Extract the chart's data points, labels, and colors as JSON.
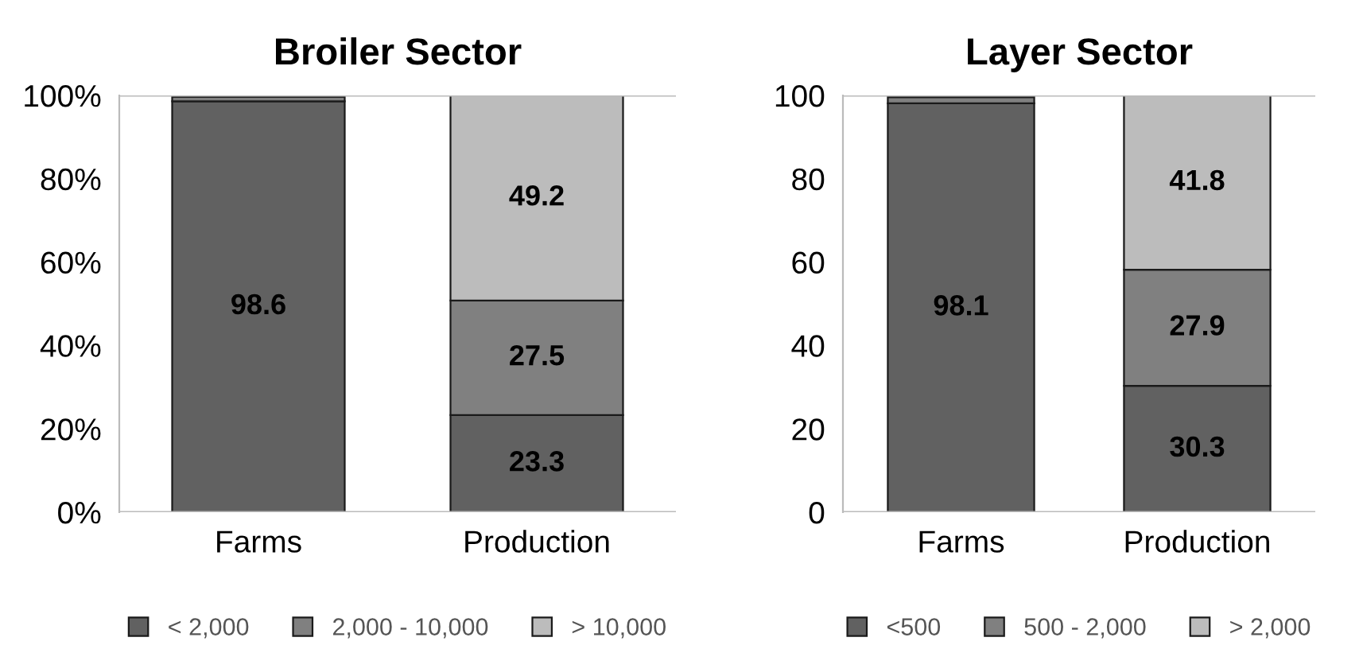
{
  "chart_data": [
    {
      "type": "bar",
      "stacked": true,
      "title": "Broiler Sector",
      "categories": [
        "Farms",
        "Production"
      ],
      "ylim": [
        0,
        100
      ],
      "yticks": [
        {
          "value": 0,
          "label": "0%"
        },
        {
          "value": 20,
          "label": "20%"
        },
        {
          "value": 40,
          "label": "40%"
        },
        {
          "value": 60,
          "label": "60%"
        },
        {
          "value": 80,
          "label": "80%"
        },
        {
          "value": 100,
          "label": "100%"
        }
      ],
      "grid": false,
      "legend": "bottom",
      "series": [
        {
          "name": "< 2,000",
          "color": "#616161",
          "values": [
            98.6,
            23.3
          ],
          "value_labels": [
            "98.6",
            "23.3"
          ]
        },
        {
          "name": "2,000 - 10,000",
          "color": "#808080",
          "values": [
            1.1,
            27.5
          ],
          "value_labels": [
            null,
            "27.5"
          ]
        },
        {
          "name": "> 10,000",
          "color": "#bcbcbc",
          "values": [
            null,
            49.2
          ],
          "value_labels": [
            null,
            "49.2"
          ]
        }
      ]
    },
    {
      "type": "bar",
      "stacked": true,
      "title": "Layer Sector",
      "categories": [
        "Farms",
        "Production"
      ],
      "ylim": [
        0,
        100
      ],
      "yticks": [
        0,
        20,
        40,
        60,
        80,
        100
      ],
      "grid": false,
      "legend": "bottom",
      "series": [
        {
          "name": "<500",
          "color": "#616161",
          "values": [
            98.1,
            30.3
          ],
          "value_labels": [
            "98.1",
            "30.3"
          ]
        },
        {
          "name": "500 - 2,000",
          "color": "#808080",
          "values": [
            1.5,
            27.9
          ],
          "value_labels": [
            null,
            "27.9"
          ]
        },
        {
          "name": "> 2,000",
          "color": "#bcbcbc",
          "values": [
            null,
            41.8
          ],
          "value_labels": [
            null,
            "41.8"
          ]
        }
      ]
    }
  ]
}
